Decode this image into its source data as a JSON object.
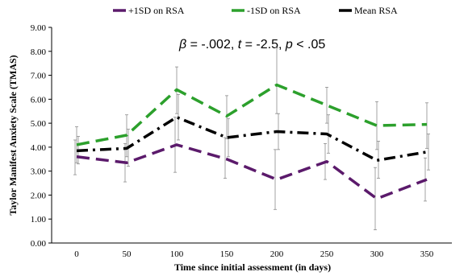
{
  "chart_data": {
    "type": "line",
    "x": [
      0,
      50,
      100,
      150,
      200,
      250,
      300,
      350
    ],
    "xlabel": "Time since initial assessment (in days)",
    "ylabel": "Taylor Manifest Anxiety Scale (TMAS)",
    "xticks": [
      "0",
      "50",
      "100",
      "150",
      "200",
      "250",
      "300",
      "350"
    ],
    "yticks": [
      "0.00",
      "1.00",
      "2.00",
      "3.00",
      "4.00",
      "5.00",
      "6.00",
      "7.00",
      "8.00",
      "9.00"
    ],
    "ylim": [
      0,
      9
    ],
    "grid": false,
    "legend_position": "top",
    "annotation": {
      "beta_sym": "β",
      "beta_val": " = -.002, ",
      "t_sym": "t",
      "t_val": " = -2.5, ",
      "p_sym": "p",
      "p_val": " < .05"
    },
    "series": [
      {
        "name": "+1SD on RSA",
        "color": "#5b1a6b",
        "dash": "long-dash",
        "values": [
          3.6,
          3.35,
          4.1,
          3.5,
          2.65,
          3.4,
          1.85,
          2.65
        ],
        "err_low": [
          2.85,
          2.55,
          2.95,
          2.7,
          1.4,
          2.65,
          0.55,
          1.75
        ],
        "err_high": [
          4.3,
          4.15,
          5.25,
          4.4,
          3.9,
          4.15,
          3.15,
          3.55
        ]
      },
      {
        "name": "-1SD on RSA",
        "color": "#2ca02c",
        "dash": "long-dash",
        "values": [
          4.1,
          4.5,
          6.4,
          5.3,
          6.6,
          5.75,
          4.9,
          4.95
        ],
        "err_low": [
          3.35,
          3.6,
          5.4,
          4.35,
          5.4,
          5.0,
          3.9,
          3.95
        ],
        "err_high": [
          4.85,
          5.35,
          7.35,
          6.15,
          8.15,
          6.5,
          5.9,
          5.85
        ]
      },
      {
        "name": "Mean RSA",
        "color": "#000000",
        "dash": "dash-dot",
        "values": [
          3.85,
          3.95,
          5.25,
          4.4,
          4.65,
          4.55,
          3.45,
          3.8
        ],
        "err_low": [
          3.3,
          3.2,
          4.3,
          3.6,
          3.9,
          3.75,
          2.7,
          3.05
        ],
        "err_high": [
          4.45,
          4.75,
          6.2,
          5.2,
          5.4,
          5.35,
          4.25,
          4.55
        ]
      }
    ]
  }
}
